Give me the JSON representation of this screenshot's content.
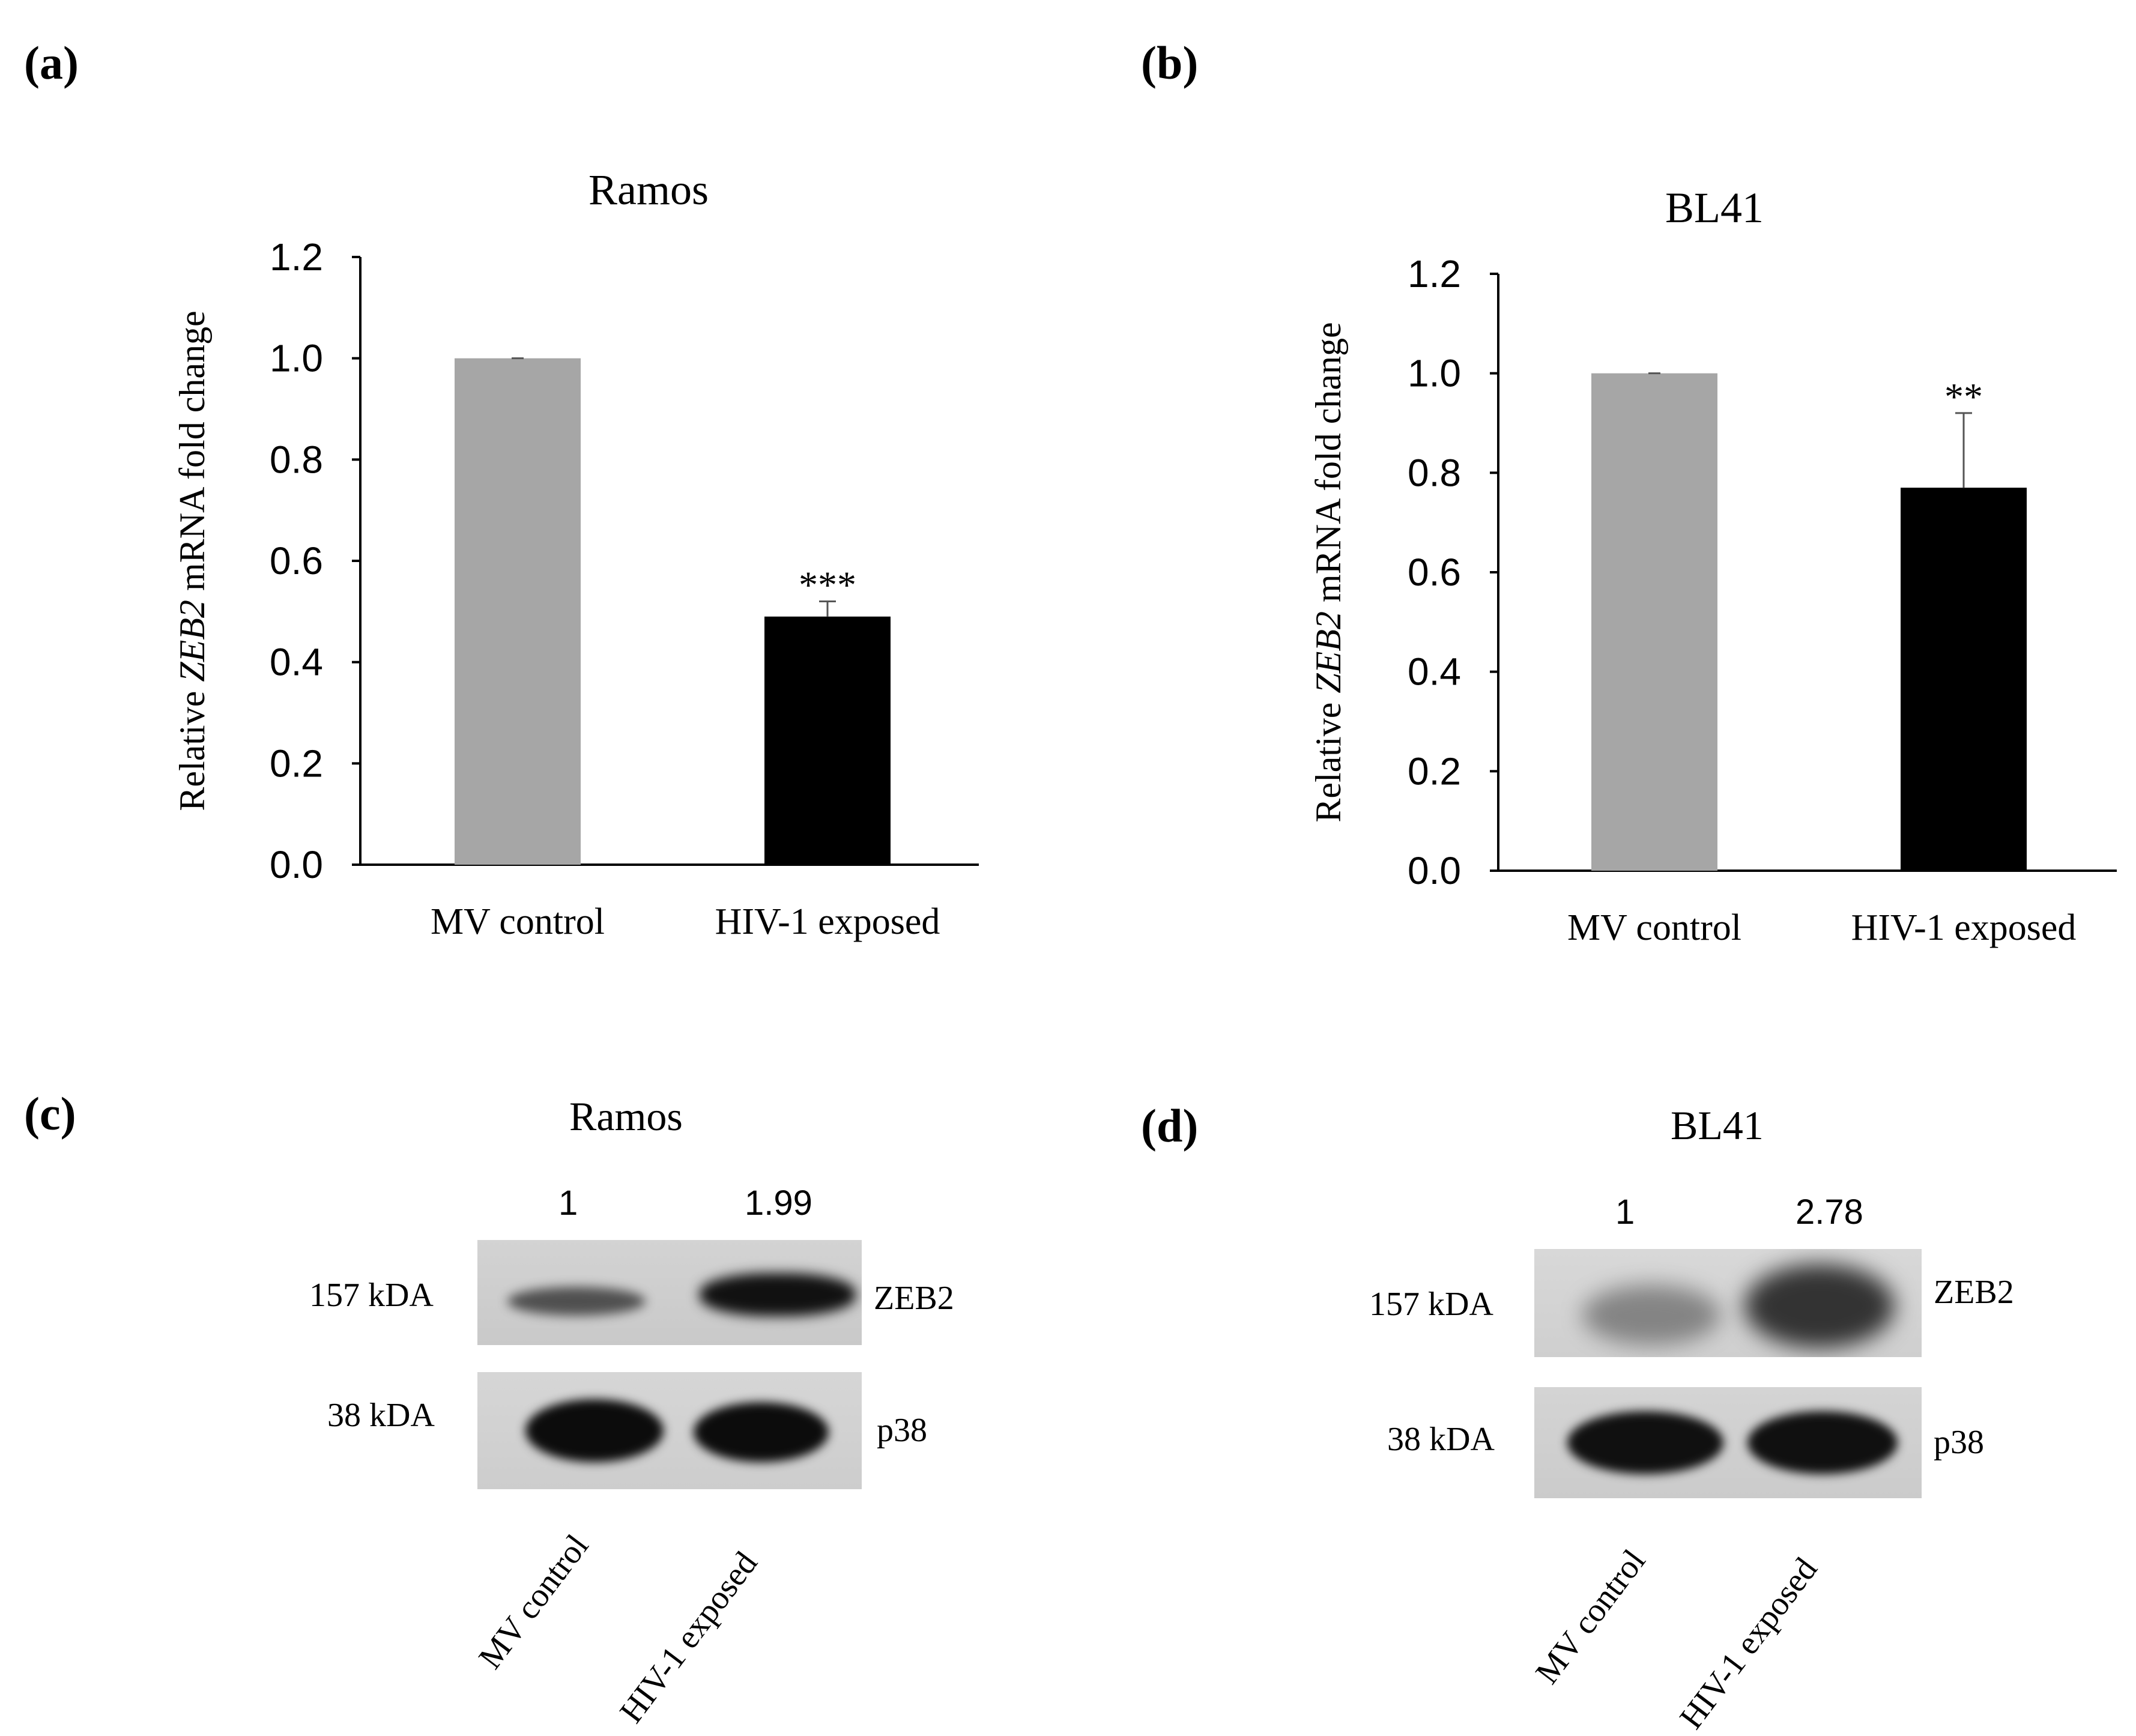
{
  "panels": {
    "a": {
      "label": "(a)"
    },
    "b": {
      "label": "(b)"
    },
    "c": {
      "label": "(c)"
    },
    "d": {
      "label": "(d)"
    }
  },
  "chart_data": [
    {
      "type": "bar",
      "panel": "a",
      "title": "Ramos",
      "ylabel_prefix": "Relative ",
      "ylabel_gene": "ZEB2",
      "ylabel_suffix": " mRNA fold change",
      "xlabel": "",
      "categories": [
        "MV control",
        "HIV-1 exposed"
      ],
      "values": [
        1.0,
        0.49
      ],
      "errors": [
        0.0,
        0.03
      ],
      "bar_colors": [
        "#a6a6a6",
        "#000000"
      ],
      "significance": [
        "",
        "***"
      ],
      "ylim": [
        0,
        1.2
      ],
      "yticks": [
        "0.0",
        "0.2",
        "0.4",
        "0.6",
        "0.8",
        "1.0",
        "1.2"
      ]
    },
    {
      "type": "bar",
      "panel": "b",
      "title": "BL41",
      "ylabel_prefix": "Relative ",
      "ylabel_gene": "ZEB2",
      "ylabel_suffix": " mRNA fold change",
      "xlabel": "",
      "categories": [
        "MV control",
        "HIV-1 exposed"
      ],
      "values": [
        1.0,
        0.77
      ],
      "errors": [
        0.0,
        0.15
      ],
      "bar_colors": [
        "#a6a6a6",
        "#000000"
      ],
      "significance": [
        "",
        "**"
      ],
      "ylim": [
        0,
        1.2
      ],
      "yticks": [
        "0.0",
        "0.2",
        "0.4",
        "0.6",
        "0.8",
        "1.0",
        "1.2"
      ]
    }
  ],
  "blots": {
    "c": {
      "title": "Ramos",
      "quant": [
        "1",
        "1.99"
      ],
      "bands": [
        {
          "size": "157 kDA",
          "protein": "ZEB2",
          "intensity": [
            0.55,
            1.0
          ]
        },
        {
          "size": "38 kDA",
          "protein": "p38",
          "intensity": [
            1.0,
            1.0
          ]
        }
      ],
      "lanes": [
        "MV control",
        "HIV-1 exposed"
      ]
    },
    "d": {
      "title": "BL41",
      "quant": [
        "1",
        "2.78"
      ],
      "bands": [
        {
          "size": "157 kDA",
          "protein": "ZEB2",
          "intensity": [
            0.35,
            0.95
          ]
        },
        {
          "size": "38 kDA",
          "protein": "p38",
          "intensity": [
            1.0,
            1.0
          ]
        }
      ],
      "lanes": [
        "MV control",
        "HIV-1 exposed"
      ]
    }
  }
}
